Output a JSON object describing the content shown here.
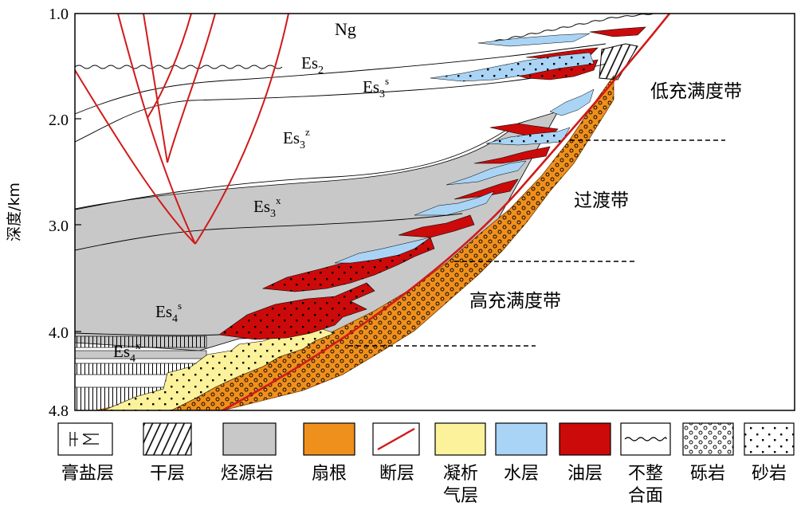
{
  "axis": {
    "ylabel": "深度/km",
    "ticks": [
      "1.0",
      "2.0",
      "3.0",
      "4.0",
      "4.8"
    ]
  },
  "layers": {
    "ng": "Ng",
    "es2": {
      "base": "Es",
      "sub": "2",
      "sup": ""
    },
    "es3s": {
      "base": "Es",
      "sub": "3",
      "sup": "s"
    },
    "es3z": {
      "base": "Es",
      "sub": "3",
      "sup": "z"
    },
    "es3x": {
      "base": "Es",
      "sub": "3",
      "sup": "x"
    },
    "es4s": {
      "base": "Es",
      "sub": "4",
      "sup": "s"
    },
    "es4x": {
      "base": "Es",
      "sub": "4",
      "sup": "x"
    }
  },
  "zones": {
    "low": "低充满度带",
    "transition": "过渡带",
    "high": "高充满度带"
  },
  "legend": [
    {
      "key": "gypsum",
      "label": "膏盐层"
    },
    {
      "key": "dry",
      "label": "干层"
    },
    {
      "key": "source",
      "label": "烃源岩"
    },
    {
      "key": "fanroot",
      "label": "扇根"
    },
    {
      "key": "fault",
      "label": "断层"
    },
    {
      "key": "condensate",
      "label": "凝析气层"
    },
    {
      "key": "water",
      "label": "水层"
    },
    {
      "key": "oil",
      "label": "油层"
    },
    {
      "key": "unconformity",
      "label": "不整合面"
    },
    {
      "key": "conglomerate",
      "label": "砾岩"
    },
    {
      "key": "sandstone",
      "label": "砂岩"
    }
  ],
  "colors": {
    "fault": "#d11a1a",
    "oil": "#cc0a0a",
    "water": "#a9d4f5",
    "condensate": "#fbf29b",
    "fanroot": "#f0901c",
    "source": "#c8c8c8"
  }
}
